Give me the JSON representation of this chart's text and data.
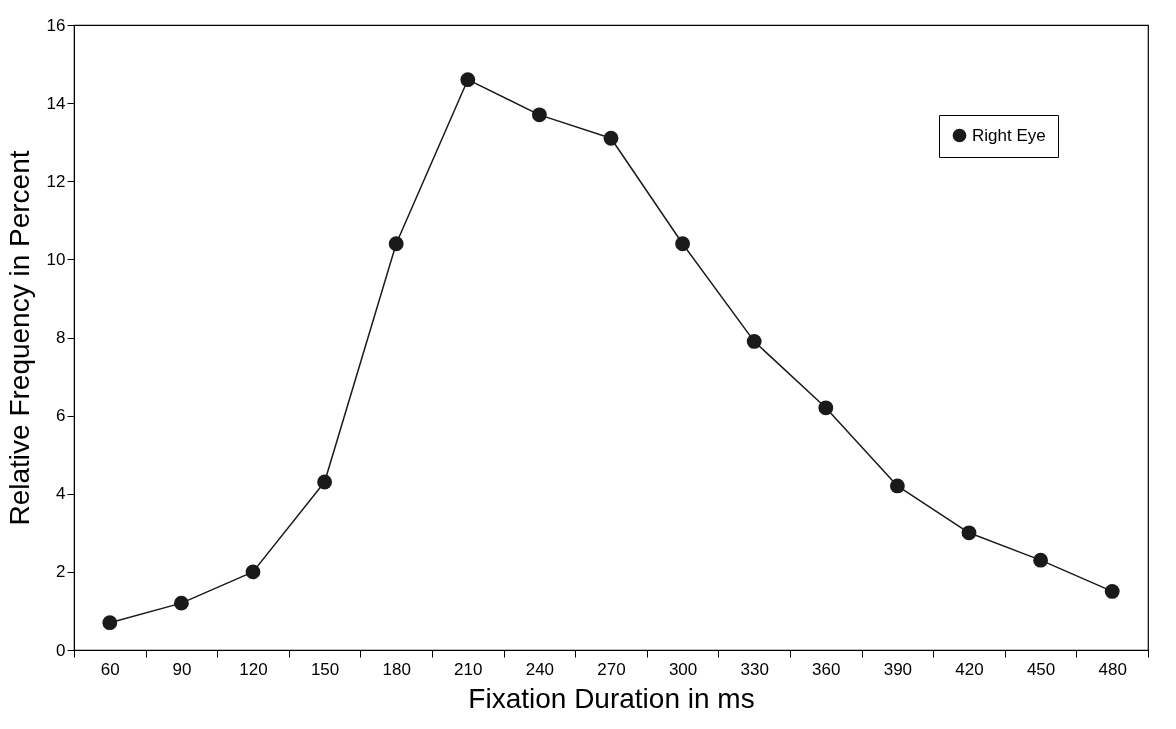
{
  "chart_data": {
    "type": "line",
    "xlabel": "Fixation Duration in ms",
    "ylabel": "Relative Frequency in Percent",
    "categories": [
      "60",
      "90",
      "120",
      "150",
      "180",
      "210",
      "240",
      "270",
      "300",
      "330",
      "360",
      "390",
      "420",
      "450",
      "480"
    ],
    "series": [
      {
        "name": "Right Eye",
        "color": "#1a1a1a",
        "values": [
          0.7,
          1.2,
          2.0,
          4.3,
          10.4,
          14.6,
          13.7,
          13.1,
          10.4,
          7.9,
          6.2,
          4.2,
          3.0,
          2.3,
          1.5
        ]
      }
    ],
    "ylim": [
      0,
      16
    ],
    "yticks": [
      0,
      2,
      4,
      6,
      8,
      10,
      12,
      14,
      16
    ],
    "marker": "circle",
    "line_style": "solid",
    "legend": "top right",
    "grid": false
  }
}
